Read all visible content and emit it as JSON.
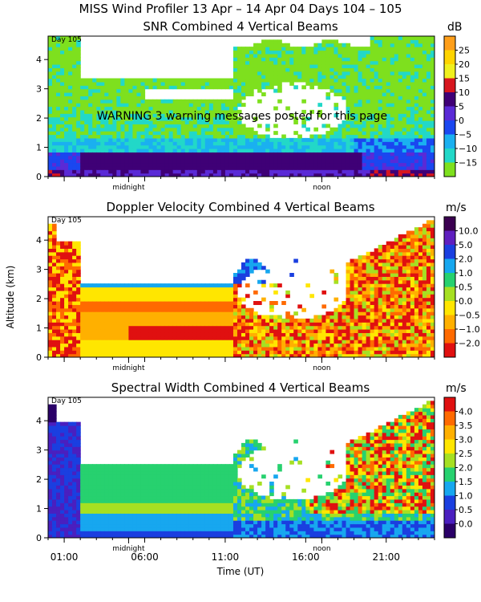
{
  "header": {
    "title": "MISS Wind Profiler  13 Apr – 14 Apr 04 Days 104 – 105"
  },
  "warning": "WARNING  3 warning messages posted for this page",
  "axes": {
    "ylabel": "Altitude (km)",
    "xlabel": "Time (UT)",
    "yticks": [
      "0",
      "1",
      "2",
      "3",
      "4"
    ],
    "time_ticks": [
      "01:00",
      "06:00",
      "11:00",
      "16:00",
      "21:00"
    ],
    "time_tick_hours": [
      1,
      6,
      11,
      16,
      21
    ],
    "markers": [
      "midnight",
      "noon"
    ],
    "marker_hours": [
      5,
      17
    ],
    "day_label": "Day 105"
  },
  "chart_data": [
    {
      "type": "heatmap",
      "title": "SNR Combined 4 Vertical Beams",
      "unit": "dB",
      "xlabel": "Time (UT)",
      "ylabel": "Altitude (km)",
      "xlim_hours": [
        0,
        24
      ],
      "ylim": [
        0,
        4.8
      ],
      "colorbar": {
        "labels": [
          "25",
          "20",
          "15",
          "10",
          "5",
          "0",
          "−5",
          "−10",
          "−15"
        ],
        "colors": [
          "#ff9f1a",
          "#ffd400",
          "#f0f01e",
          "#d7161e",
          "#3f0076",
          "#5a2ad6",
          "#1a47f0",
          "#1ab0f0",
          "#22d8c8",
          "#7ee01e"
        ]
      }
    },
    {
      "type": "heatmap",
      "title": "Doppler Velocity Combined 4 Vertical Beams",
      "unit": "m/s",
      "xlabel": "Time (UT)",
      "ylabel": "Altitude (km)",
      "xlim_hours": [
        0,
        24
      ],
      "ylim": [
        0,
        4.8
      ],
      "colorbar": {
        "labels": [
          "10.0",
          "5.0",
          "2.0",
          "1.0",
          "0.5",
          "0.0",
          "−0.5",
          "−1.0",
          "−2.0"
        ],
        "colors": [
          "#3a0050",
          "#5f1fbf",
          "#1a3fe0",
          "#17a7ef",
          "#27d16f",
          "#a6e022",
          "#ffe600",
          "#ffb000",
          "#ff6a00",
          "#e01010"
        ]
      }
    },
    {
      "type": "heatmap",
      "title": "Spectral Width Combined 4 Vertical Beams",
      "unit": "m/s",
      "xlabel": "Time (UT)",
      "ylabel": "Altitude (km)",
      "xlim_hours": [
        0,
        24
      ],
      "ylim": [
        0,
        4.8
      ],
      "colorbar": {
        "labels": [
          "4.0",
          "3.5",
          "3.0",
          "2.5",
          "2.0",
          "1.5",
          "1.0",
          "0.5",
          "0.0"
        ],
        "colors": [
          "#e01010",
          "#ff6a00",
          "#ffb000",
          "#ffe600",
          "#a6e022",
          "#27d16f",
          "#17a7ef",
          "#1a3fe0",
          "#4a1fbf",
          "#2a0068"
        ]
      }
    }
  ]
}
